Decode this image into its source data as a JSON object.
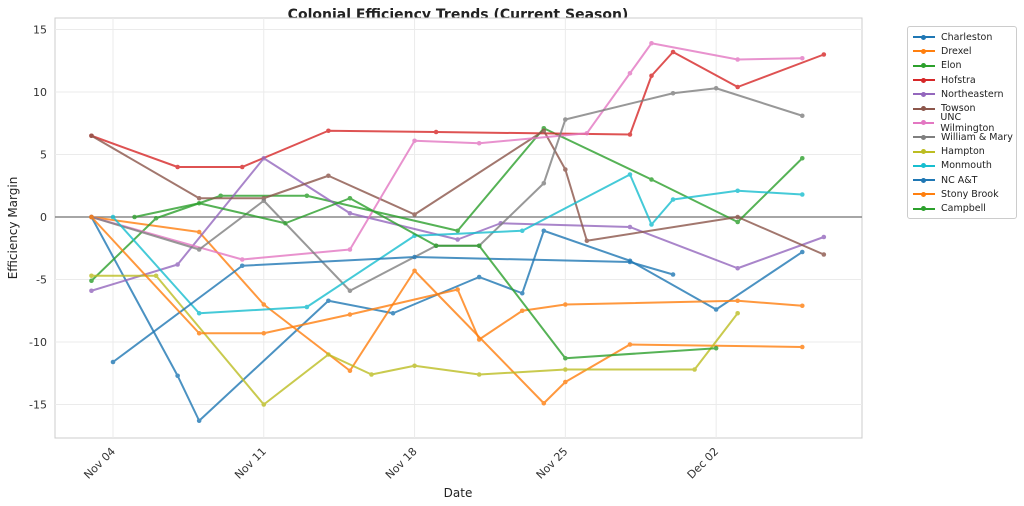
{
  "chart_data": {
    "type": "line",
    "title": "Colonial Efficiency Trends (Current Season)",
    "xlabel": "Date",
    "ylabel": "Efficiency Margin",
    "ylim": [
      -17.5,
      15.5
    ],
    "yticks": [
      -15,
      -10,
      -5,
      0,
      5,
      10,
      15
    ],
    "xticks": [
      "Nov 04",
      "Nov 11",
      "Nov 18",
      "Nov 25",
      "Dec 02"
    ],
    "grid": true,
    "reference_line": 0,
    "legend_position": "outside-right",
    "series": [
      {
        "name": "Charleston",
        "color": "#1f77b4",
        "points": [
          [
            "Nov 03",
            0
          ],
          [
            "Nov 07",
            -12.7
          ],
          [
            "Nov 08",
            -16.3
          ],
          [
            "Nov 14",
            -6.7
          ],
          [
            "Nov 17",
            -7.7
          ],
          [
            "Nov 21",
            -4.8
          ],
          [
            "Nov 23",
            -6.1
          ],
          [
            "Nov 24",
            -1.1
          ],
          [
            "Nov 28",
            -3.5
          ],
          [
            "Dec 02",
            -7.4
          ],
          [
            "Dec 06",
            -2.8
          ]
        ]
      },
      {
        "name": "Drexel",
        "color": "#ff7f0e",
        "points": [
          [
            "Nov 03",
            0
          ],
          [
            "Nov 08",
            -1.2
          ],
          [
            "Nov 11",
            -7.0
          ],
          [
            "Nov 15",
            -12.3
          ],
          [
            "Nov 18",
            -4.3
          ],
          [
            "Nov 24",
            -14.9
          ],
          [
            "Nov 25",
            -13.2
          ],
          [
            "Nov 28",
            -10.2
          ],
          [
            "Dec 06",
            -10.4
          ]
        ]
      },
      {
        "name": "Elon",
        "color": "#2ca02c",
        "points": [
          [
            "Nov 03",
            -5.1
          ],
          [
            "Nov 06",
            -0.1
          ],
          [
            "Nov 09",
            1.7
          ],
          [
            "Nov 13",
            1.7
          ],
          [
            "Nov 20",
            -1.1
          ],
          [
            "Nov 24",
            7.1
          ],
          [
            "Nov 29",
            3.0
          ],
          [
            "Dec 03",
            -0.4
          ],
          [
            "Dec 06",
            4.7
          ]
        ]
      },
      {
        "name": "Hofstra",
        "color": "#d62728",
        "points": [
          [
            "Nov 03",
            6.5
          ],
          [
            "Nov 07",
            4.0
          ],
          [
            "Nov 10",
            4.0
          ],
          [
            "Nov 14",
            6.9
          ],
          [
            "Nov 19",
            6.8
          ],
          [
            "Nov 28",
            6.6
          ],
          [
            "Nov 29",
            11.3
          ],
          [
            "Nov 30",
            13.2
          ],
          [
            "Dec 03",
            10.4
          ],
          [
            "Dec 07",
            13.0
          ]
        ]
      },
      {
        "name": "Northeastern",
        "color": "#9467bd",
        "points": [
          [
            "Nov 03",
            -5.9
          ],
          [
            "Nov 07",
            -3.8
          ],
          [
            "Nov 11",
            4.7
          ],
          [
            "Nov 15",
            0.3
          ],
          [
            "Nov 20",
            -1.8
          ],
          [
            "Nov 22",
            -0.5
          ],
          [
            "Nov 28",
            -0.8
          ],
          [
            "Dec 03",
            -4.1
          ],
          [
            "Dec 07",
            -1.6
          ]
        ]
      },
      {
        "name": "Towson",
        "color": "#8c564b",
        "points": [
          [
            "Nov 03",
            6.5
          ],
          [
            "Nov 08",
            1.5
          ],
          [
            "Nov 11",
            1.5
          ],
          [
            "Nov 14",
            3.3
          ],
          [
            "Nov 18",
            0.2
          ],
          [
            "Nov 24",
            6.9
          ],
          [
            "Nov 25",
            3.8
          ],
          [
            "Nov 26",
            -1.9
          ],
          [
            "Dec 03",
            0
          ],
          [
            "Dec 07",
            -3.0
          ]
        ]
      },
      {
        "name": "UNC Wilmington",
        "color": "#e377c2",
        "points": [
          [
            "Nov 03",
            0
          ],
          [
            "Nov 10",
            -3.4
          ],
          [
            "Nov 15",
            -2.6
          ],
          [
            "Nov 18",
            6.1
          ],
          [
            "Nov 21",
            5.9
          ],
          [
            "Nov 26",
            6.7
          ],
          [
            "Nov 28",
            11.5
          ],
          [
            "Nov 29",
            13.9
          ],
          [
            "Dec 03",
            12.6
          ],
          [
            "Dec 06",
            12.7
          ]
        ]
      },
      {
        "name": "William & Mary",
        "color": "#7f7f7f",
        "points": [
          [
            "Nov 03",
            0
          ],
          [
            "Nov 08",
            -2.6
          ],
          [
            "Nov 11",
            1.3
          ],
          [
            "Nov 15",
            -5.9
          ],
          [
            "Nov 19",
            -2.3
          ],
          [
            "Nov 21",
            -2.3
          ],
          [
            "Nov 24",
            2.7
          ],
          [
            "Nov 25",
            7.8
          ],
          [
            "Nov 30",
            9.9
          ],
          [
            "Dec 02",
            10.3
          ],
          [
            "Dec 06",
            8.1
          ]
        ]
      },
      {
        "name": "Hampton",
        "color": "#bcbd22",
        "points": [
          [
            "Nov 03",
            -4.7
          ],
          [
            "Nov 06",
            -4.7
          ],
          [
            "Nov 11",
            -15.0
          ],
          [
            "Nov 14",
            -11.0
          ],
          [
            "Nov 16",
            -12.6
          ],
          [
            "Nov 18",
            -11.9
          ],
          [
            "Nov 21",
            -12.6
          ],
          [
            "Nov 25",
            -12.2
          ],
          [
            "Dec 01",
            -12.2
          ],
          [
            "Dec 03",
            -7.7
          ]
        ]
      },
      {
        "name": "Monmouth",
        "color": "#17becf",
        "points": [
          [
            "Nov 04",
            0
          ],
          [
            "Nov 08",
            -7.7
          ],
          [
            "Nov 13",
            -7.2
          ],
          [
            "Nov 18",
            -1.5
          ],
          [
            "Nov 23",
            -1.1
          ],
          [
            "Nov 28",
            3.4
          ],
          [
            "Nov 29",
            -0.6
          ],
          [
            "Nov 30",
            1.4
          ],
          [
            "Dec 03",
            2.1
          ],
          [
            "Dec 06",
            1.8
          ]
        ]
      },
      {
        "name": "NC A&T",
        "color": "#1f77b4",
        "points": [
          [
            "Nov 04",
            -11.6
          ],
          [
            "Nov 10",
            -3.9
          ],
          [
            "Nov 18",
            -3.2
          ],
          [
            "Nov 28",
            -3.6
          ],
          [
            "Nov 30",
            -4.6
          ]
        ]
      },
      {
        "name": "Stony Brook",
        "color": "#ff7f0e",
        "points": [
          [
            "Nov 03",
            0
          ],
          [
            "Nov 08",
            -9.3
          ],
          [
            "Nov 11",
            -9.3
          ],
          [
            "Nov 15",
            -7.8
          ],
          [
            "Nov 20",
            -5.8
          ],
          [
            "Nov 21",
            -9.8
          ],
          [
            "Nov 23",
            -7.5
          ],
          [
            "Nov 25",
            -7.0
          ],
          [
            "Dec 03",
            -6.7
          ],
          [
            "Dec 06",
            -7.1
          ]
        ]
      },
      {
        "name": "Campbell",
        "color": "#2ca02c",
        "points": [
          [
            "Nov 05",
            0
          ],
          [
            "Nov 08",
            1.1
          ],
          [
            "Nov 12",
            -0.5
          ],
          [
            "Nov 15",
            1.5
          ],
          [
            "Nov 19",
            -2.3
          ],
          [
            "Nov 21",
            -2.3
          ],
          [
            "Nov 25",
            -11.3
          ],
          [
            "Dec 02",
            -10.5
          ]
        ]
      }
    ]
  }
}
